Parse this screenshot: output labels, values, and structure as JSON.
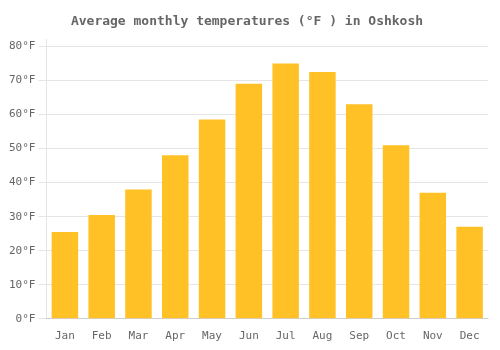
{
  "chart_data": {
    "type": "bar",
    "title": "Average monthly temperatures (°F ) in Oshkosh",
    "categories": [
      "Jan",
      "Feb",
      "Mar",
      "Apr",
      "May",
      "Jun",
      "Jul",
      "Aug",
      "Sep",
      "Oct",
      "Nov",
      "Dec"
    ],
    "values": [
      25.5,
      30.5,
      38.0,
      48.0,
      58.5,
      69.0,
      75.0,
      72.5,
      63.0,
      51.0,
      37.0,
      27.0
    ],
    "color": "#FFC125",
    "ylim": [
      0,
      82
    ],
    "yticks": [
      {
        "value": 0,
        "label": "0°F"
      },
      {
        "value": 10,
        "label": "10°F"
      },
      {
        "value": 20,
        "label": "20°F"
      },
      {
        "value": 30,
        "label": "30°F"
      },
      {
        "value": 40,
        "label": "40°F"
      },
      {
        "value": 50,
        "label": "50°F"
      },
      {
        "value": 60,
        "label": "60°F"
      },
      {
        "value": 70,
        "label": "70°F"
      },
      {
        "value": 80,
        "label": "80°F"
      }
    ],
    "grid": true
  }
}
